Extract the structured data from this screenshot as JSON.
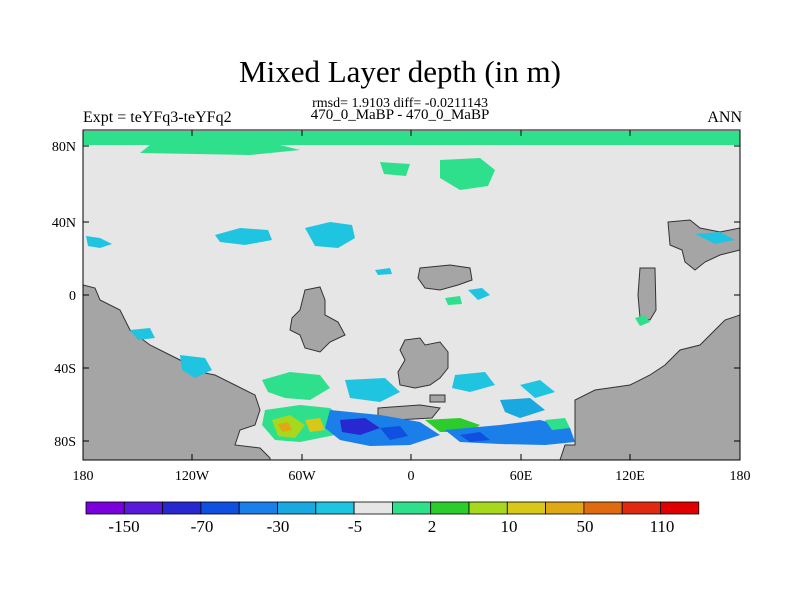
{
  "title": "Mixed Layer depth (in m)",
  "stats": "rmsd= 1.9103 diff= -0.0211143",
  "subtitle": "470_0_MaBP - 470_0_MaBP",
  "experiment": "Expt = teYFq3-teYFq2",
  "season": "ANN",
  "axes": {
    "x_ticks": [
      "180",
      "120W",
      "60W",
      "0",
      "60E",
      "120E",
      "180"
    ],
    "y_ticks": [
      "80N",
      "40N",
      "0",
      "40S",
      "80S"
    ]
  },
  "colorbar": {
    "colors": [
      "#7a00dc",
      "#5a18d8",
      "#2828d0",
      "#1050e0",
      "#1a7fe8",
      "#1aa8e0",
      "#1fc5e0",
      "#e6e6e6",
      "#2ee08c",
      "#2ccc2c",
      "#a8d81e",
      "#d8c81a",
      "#e0a814",
      "#e06a10",
      "#e02a10",
      "#e00000"
    ],
    "labels": [
      "-150",
      "-70",
      "-30",
      "-5",
      "2",
      "10",
      "50",
      "110"
    ]
  },
  "map_colors": {
    "land": "#a5a5a5",
    "zero": "#e6e6e6",
    "green_light": "#2ee08c",
    "green": "#2ccc2c",
    "cyan": "#1fc5e0",
    "sky": "#1aa8e0",
    "blue": "#1a7fe8",
    "deep_blue": "#1050e0",
    "navy": "#2828d0",
    "yellow": "#d8c81a",
    "orange": "#e0a814",
    "lime": "#a8d81e"
  }
}
